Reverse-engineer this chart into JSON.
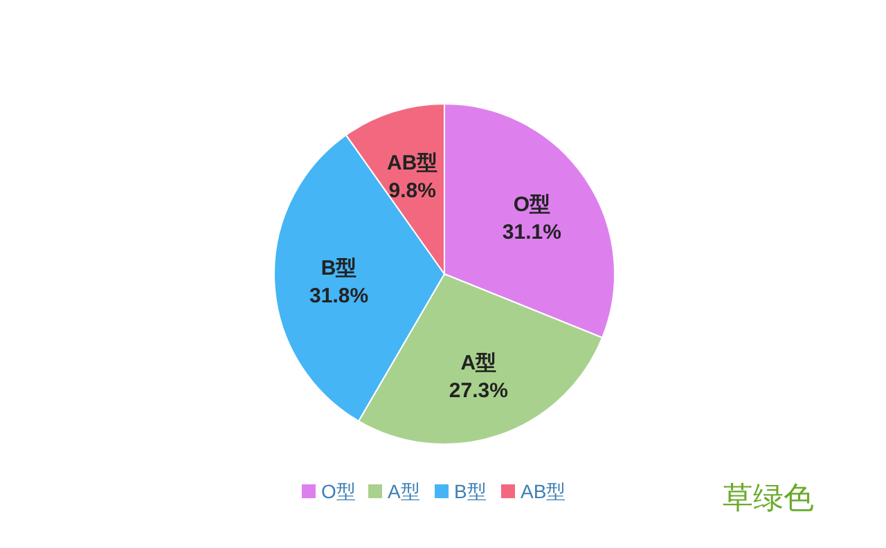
{
  "chart_data": {
    "type": "pie",
    "categories": [
      "O型",
      "A型",
      "B型",
      "AB型"
    ],
    "values": [
      31.1,
      27.3,
      31.8,
      9.8
    ],
    "colors": [
      "#dd80ee",
      "#a9d18e",
      "#45b5f5",
      "#f2697f"
    ],
    "value_labels": [
      "31.1%",
      "27.3%",
      "31.8%",
      "9.8%"
    ],
    "legend": "bottom",
    "annotations": [
      "草绿色"
    ]
  }
}
